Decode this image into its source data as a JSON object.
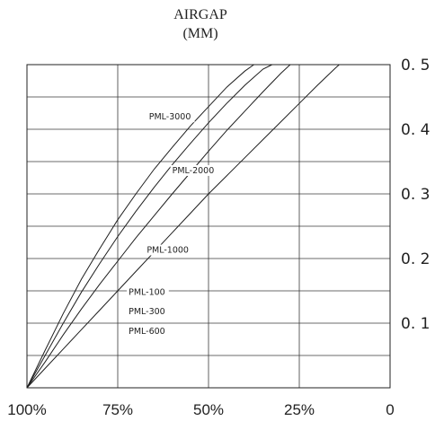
{
  "chart_data": {
    "type": "line",
    "title": "",
    "ylabel_line1": "AIRGAP",
    "ylabel_line2": "(MM)",
    "xlabel": "",
    "x_reversed": true,
    "xlim": [
      100,
      0
    ],
    "ylim": [
      0,
      0.5
    ],
    "x_ticks": [
      {
        "value": 100,
        "label": "100%"
      },
      {
        "value": 75,
        "label": "75%"
      },
      {
        "value": 50,
        "label": "50%"
      },
      {
        "value": 25,
        "label": "25%"
      },
      {
        "value": 0,
        "label": "0"
      }
    ],
    "y_ticks": [
      {
        "value": 0.1,
        "label": "0. 1"
      },
      {
        "value": 0.2,
        "label": "0. 2"
      },
      {
        "value": 0.3,
        "label": "0. 3"
      },
      {
        "value": 0.4,
        "label": "0. 4"
      },
      {
        "value": 0.5,
        "label": "0. 5"
      }
    ],
    "grid": {
      "x_step": 25,
      "y_step": 0.05
    },
    "series": [
      {
        "name": "PML-3000",
        "points": [
          [
            100,
            0
          ],
          [
            95,
            0.058
          ],
          [
            90,
            0.115
          ],
          [
            85,
            0.168
          ],
          [
            80,
            0.215
          ],
          [
            75,
            0.26
          ],
          [
            70,
            0.3
          ],
          [
            65,
            0.338
          ],
          [
            60,
            0.372
          ],
          [
            55,
            0.405
          ],
          [
            50,
            0.435
          ],
          [
            45,
            0.465
          ],
          [
            40,
            0.49
          ],
          [
            37.5,
            0.5
          ]
        ],
        "label_at": [
          66.4,
          0.415
        ]
      },
      {
        "name": "PML-2000",
        "points": [
          [
            100,
            0
          ],
          [
            95,
            0.05
          ],
          [
            90,
            0.1
          ],
          [
            85,
            0.148
          ],
          [
            80,
            0.192
          ],
          [
            75,
            0.234
          ],
          [
            70,
            0.273
          ],
          [
            65,
            0.31
          ],
          [
            60,
            0.345
          ],
          [
            55,
            0.378
          ],
          [
            50,
            0.41
          ],
          [
            45,
            0.44
          ],
          [
            40,
            0.468
          ],
          [
            35,
            0.493
          ],
          [
            32.5,
            0.5
          ]
        ],
        "label_at": [
          60,
          0.332
        ]
      },
      {
        "name": "PML-1000",
        "points": [
          [
            100,
            0
          ],
          [
            95,
            0.04
          ],
          [
            90,
            0.082
          ],
          [
            85,
            0.122
          ],
          [
            80,
            0.16
          ],
          [
            75,
            0.196
          ],
          [
            70,
            0.232
          ],
          [
            65,
            0.266
          ],
          [
            60,
            0.3
          ],
          [
            55,
            0.333
          ],
          [
            50,
            0.366
          ],
          [
            45,
            0.398
          ],
          [
            40,
            0.428
          ],
          [
            35,
            0.458
          ],
          [
            30,
            0.487
          ],
          [
            27.5,
            0.5
          ]
        ],
        "label_at": [
          67,
          0.209
        ]
      },
      {
        "name": "PML-100",
        "points": [
          [
            100,
            0
          ],
          [
            95,
            0.03
          ],
          [
            90,
            0.06
          ],
          [
            85,
            0.09
          ],
          [
            80,
            0.12
          ],
          [
            75,
            0.15
          ],
          [
            70,
            0.18
          ],
          [
            65,
            0.21
          ],
          [
            60,
            0.24
          ],
          [
            55,
            0.27
          ],
          [
            50,
            0.3
          ],
          [
            45,
            0.328
          ],
          [
            40,
            0.356
          ],
          [
            35,
            0.384
          ],
          [
            30,
            0.412
          ],
          [
            25,
            0.44
          ],
          [
            20,
            0.468
          ],
          [
            15,
            0.495
          ],
          [
            14,
            0.5
          ]
        ],
        "label_at": [
          72,
          0.144
        ]
      }
    ],
    "extra_labels": [
      {
        "text": "PML-300",
        "at": [
          72,
          0.114
        ]
      },
      {
        "text": "PML-600",
        "at": [
          72,
          0.083
        ]
      }
    ]
  }
}
